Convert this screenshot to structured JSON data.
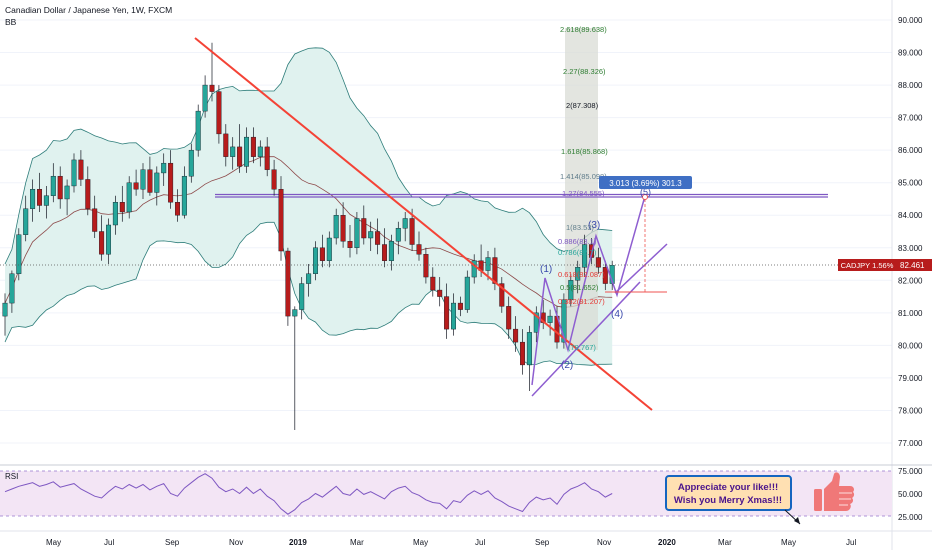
{
  "header": {
    "symbol_title": "Canadian Dollar / Japanese Yen, 1W, FXCM",
    "indicator": "BB"
  },
  "price_axis": {
    "ticks": [
      "90.000",
      "89.000",
      "88.000",
      "87.000",
      "86.000",
      "85.000",
      "84.000",
      "83.000",
      "82.000",
      "81.000",
      "80.000",
      "79.000",
      "78.000",
      "77.000"
    ],
    "current_label": "CADJPY 1.56%",
    "current_value": "82.461"
  },
  "time_axis": {
    "ticks": [
      "May",
      "Jul",
      "Sep",
      "Nov",
      "2019",
      "Mar",
      "May",
      "Jul",
      "Sep",
      "Nov",
      "2020",
      "Mar",
      "May",
      "Jul"
    ]
  },
  "rsi": {
    "label": "RSI",
    "ticks": [
      "75.000",
      "50.000",
      "25.000"
    ]
  },
  "fibonacci": {
    "levels": [
      "2.618(89.638)",
      "2.27(88.326)",
      "2(87.308)",
      "1.618(85.868)",
      "1.414(85.098)",
      "1.27(84.555)",
      "1(83.53)",
      "0.886(83.1)",
      "0.786(82.7)",
      "0.618(82.087)",
      "0.5(81.652)",
      "0.382(81.207)",
      "(79.767)"
    ]
  },
  "measure_label": "3.013 (3.69%) 301.3",
  "waves": [
    "(1)",
    "(2)",
    "(3)",
    "(4)",
    "(5)"
  ],
  "note": {
    "line1": "Appreciate your like!!!",
    "line2": "Wish you Merry Xmas!!!"
  },
  "colors": {
    "up": "#26a69a",
    "down": "#b71c1c",
    "band_fill": "#e0f2ef",
    "trendline": "#f44336",
    "wave": "#8e5ed0",
    "rsi": "#7e57c2",
    "rsi_band": "#f3e5f5",
    "note_bg": "#ffe0b2",
    "note_border": "#1565c0",
    "note_text": "#4a148c",
    "thumb": "#f07878"
  },
  "chart_data": {
    "type": "candlestick",
    "timeframe": "1W",
    "ylim": [
      76.5,
      90.5
    ],
    "resistance_level": 84.6,
    "last_price": 82.461,
    "candles": [
      {
        "o": 80.9,
        "h": 81.6,
        "l": 80.3,
        "c": 81.3
      },
      {
        "o": 81.3,
        "h": 82.3,
        "l": 81.0,
        "c": 82.2
      },
      {
        "o": 82.2,
        "h": 83.6,
        "l": 82.0,
        "c": 83.4
      },
      {
        "o": 83.4,
        "h": 84.6,
        "l": 83.2,
        "c": 84.2
      },
      {
        "o": 84.2,
        "h": 85.1,
        "l": 83.8,
        "c": 84.8
      },
      {
        "o": 84.8,
        "h": 85.3,
        "l": 84.1,
        "c": 84.3
      },
      {
        "o": 84.3,
        "h": 84.9,
        "l": 83.9,
        "c": 84.6
      },
      {
        "o": 84.6,
        "h": 85.6,
        "l": 84.4,
        "c": 85.2
      },
      {
        "o": 85.2,
        "h": 85.5,
        "l": 84.2,
        "c": 84.5
      },
      {
        "o": 84.5,
        "h": 85.1,
        "l": 84.0,
        "c": 84.9
      },
      {
        "o": 84.9,
        "h": 85.9,
        "l": 84.7,
        "c": 85.7
      },
      {
        "o": 85.7,
        "h": 86.0,
        "l": 84.9,
        "c": 85.1
      },
      {
        "o": 85.1,
        "h": 85.5,
        "l": 84.0,
        "c": 84.2
      },
      {
        "o": 84.2,
        "h": 84.6,
        "l": 83.3,
        "c": 83.5
      },
      {
        "o": 83.5,
        "h": 84.0,
        "l": 82.6,
        "c": 82.8
      },
      {
        "o": 82.8,
        "h": 83.9,
        "l": 82.5,
        "c": 83.7
      },
      {
        "o": 83.7,
        "h": 84.6,
        "l": 83.4,
        "c": 84.4
      },
      {
        "o": 84.4,
        "h": 84.9,
        "l": 83.8,
        "c": 84.1
      },
      {
        "o": 84.1,
        "h": 85.2,
        "l": 83.9,
        "c": 85.0
      },
      {
        "o": 85.0,
        "h": 85.4,
        "l": 84.6,
        "c": 84.8
      },
      {
        "o": 84.8,
        "h": 85.6,
        "l": 84.5,
        "c": 85.4
      },
      {
        "o": 85.4,
        "h": 85.8,
        "l": 84.6,
        "c": 84.7
      },
      {
        "o": 84.7,
        "h": 85.5,
        "l": 84.3,
        "c": 85.3
      },
      {
        "o": 85.3,
        "h": 85.9,
        "l": 84.9,
        "c": 85.6
      },
      {
        "o": 85.6,
        "h": 86.0,
        "l": 84.2,
        "c": 84.4
      },
      {
        "o": 84.4,
        "h": 84.8,
        "l": 83.8,
        "c": 84.0
      },
      {
        "o": 84.0,
        "h": 85.5,
        "l": 83.9,
        "c": 85.2
      },
      {
        "o": 85.2,
        "h": 86.2,
        "l": 85.0,
        "c": 86.0
      },
      {
        "o": 86.0,
        "h": 87.4,
        "l": 85.8,
        "c": 87.2
      },
      {
        "o": 87.2,
        "h": 88.3,
        "l": 87.0,
        "c": 88.0
      },
      {
        "o": 88.0,
        "h": 89.3,
        "l": 87.5,
        "c": 87.8
      },
      {
        "o": 87.8,
        "h": 88.0,
        "l": 86.2,
        "c": 86.5
      },
      {
        "o": 86.5,
        "h": 86.8,
        "l": 85.5,
        "c": 85.8
      },
      {
        "o": 85.8,
        "h": 86.4,
        "l": 85.4,
        "c": 86.1
      },
      {
        "o": 86.1,
        "h": 86.8,
        "l": 85.3,
        "c": 85.5
      },
      {
        "o": 85.5,
        "h": 86.7,
        "l": 85.3,
        "c": 86.4
      },
      {
        "o": 86.4,
        "h": 86.7,
        "l": 85.6,
        "c": 85.8
      },
      {
        "o": 85.8,
        "h": 86.3,
        "l": 85.5,
        "c": 86.1
      },
      {
        "o": 86.1,
        "h": 86.4,
        "l": 85.2,
        "c": 85.4
      },
      {
        "o": 85.4,
        "h": 85.7,
        "l": 84.6,
        "c": 84.8
      },
      {
        "o": 84.8,
        "h": 85.2,
        "l": 82.6,
        "c": 82.9
      },
      {
        "o": 82.9,
        "h": 83.0,
        "l": 80.6,
        "c": 80.9
      },
      {
        "o": 80.9,
        "h": 81.2,
        "l": 77.4,
        "c": 81.1
      },
      {
        "o": 81.1,
        "h": 82.1,
        "l": 80.8,
        "c": 81.9
      },
      {
        "o": 81.9,
        "h": 82.5,
        "l": 81.5,
        "c": 82.2
      },
      {
        "o": 82.2,
        "h": 83.2,
        "l": 82.0,
        "c": 83.0
      },
      {
        "o": 83.0,
        "h": 83.4,
        "l": 82.4,
        "c": 82.6
      },
      {
        "o": 82.6,
        "h": 83.5,
        "l": 82.4,
        "c": 83.3
      },
      {
        "o": 83.3,
        "h": 84.2,
        "l": 83.1,
        "c": 84.0
      },
      {
        "o": 84.0,
        "h": 84.4,
        "l": 83.0,
        "c": 83.2
      },
      {
        "o": 83.2,
        "h": 83.7,
        "l": 82.7,
        "c": 83.0
      },
      {
        "o": 83.0,
        "h": 84.1,
        "l": 82.8,
        "c": 83.9
      },
      {
        "o": 83.9,
        "h": 84.3,
        "l": 83.1,
        "c": 83.3
      },
      {
        "o": 83.3,
        "h": 83.8,
        "l": 82.9,
        "c": 83.5
      },
      {
        "o": 83.5,
        "h": 83.9,
        "l": 82.8,
        "c": 83.1
      },
      {
        "o": 83.1,
        "h": 83.6,
        "l": 82.4,
        "c": 82.6
      },
      {
        "o": 82.6,
        "h": 83.4,
        "l": 82.3,
        "c": 83.2
      },
      {
        "o": 83.2,
        "h": 83.8,
        "l": 82.8,
        "c": 83.6
      },
      {
        "o": 83.6,
        "h": 84.1,
        "l": 83.2,
        "c": 83.9
      },
      {
        "o": 83.9,
        "h": 84.2,
        "l": 82.9,
        "c": 83.1
      },
      {
        "o": 83.1,
        "h": 83.5,
        "l": 82.6,
        "c": 82.8
      },
      {
        "o": 82.8,
        "h": 83.0,
        "l": 81.9,
        "c": 82.1
      },
      {
        "o": 82.1,
        "h": 82.4,
        "l": 81.5,
        "c": 81.7
      },
      {
        "o": 81.7,
        "h": 82.1,
        "l": 81.2,
        "c": 81.5
      },
      {
        "o": 81.5,
        "h": 81.9,
        "l": 80.2,
        "c": 80.5
      },
      {
        "o": 80.5,
        "h": 81.6,
        "l": 80.3,
        "c": 81.3
      },
      {
        "o": 81.3,
        "h": 81.5,
        "l": 80.9,
        "c": 81.1
      },
      {
        "o": 81.1,
        "h": 82.3,
        "l": 81.0,
        "c": 82.1
      },
      {
        "o": 82.1,
        "h": 82.8,
        "l": 81.9,
        "c": 82.6
      },
      {
        "o": 82.6,
        "h": 83.1,
        "l": 82.1,
        "c": 82.3
      },
      {
        "o": 82.3,
        "h": 82.9,
        "l": 82.0,
        "c": 82.7
      },
      {
        "o": 82.7,
        "h": 83.0,
        "l": 81.7,
        "c": 81.9
      },
      {
        "o": 81.9,
        "h": 82.1,
        "l": 81.0,
        "c": 81.2
      },
      {
        "o": 81.2,
        "h": 81.5,
        "l": 80.2,
        "c": 80.5
      },
      {
        "o": 80.5,
        "h": 80.9,
        "l": 79.8,
        "c": 80.1
      },
      {
        "o": 80.1,
        "h": 80.5,
        "l": 79.1,
        "c": 79.4
      },
      {
        "o": 79.4,
        "h": 80.6,
        "l": 78.6,
        "c": 80.4
      },
      {
        "o": 80.4,
        "h": 81.2,
        "l": 80.1,
        "c": 81.0
      },
      {
        "o": 81.0,
        "h": 81.4,
        "l": 80.5,
        "c": 80.7
      },
      {
        "o": 80.7,
        "h": 81.1,
        "l": 80.3,
        "c": 80.9
      },
      {
        "o": 80.9,
        "h": 81.2,
        "l": 79.9,
        "c": 80.1
      },
      {
        "o": 80.1,
        "h": 81.6,
        "l": 79.9,
        "c": 81.4
      },
      {
        "o": 81.4,
        "h": 82.2,
        "l": 81.2,
        "c": 82.0
      },
      {
        "o": 82.0,
        "h": 82.6,
        "l": 81.6,
        "c": 82.4
      },
      {
        "o": 82.4,
        "h": 83.4,
        "l": 82.1,
        "c": 83.1
      },
      {
        "o": 83.1,
        "h": 83.3,
        "l": 82.5,
        "c": 82.7
      },
      {
        "o": 82.7,
        "h": 83.0,
        "l": 82.2,
        "c": 82.4
      },
      {
        "o": 82.4,
        "h": 82.6,
        "l": 81.7,
        "c": 81.9
      },
      {
        "o": 81.9,
        "h": 82.6,
        "l": 81.7,
        "c": 82.461
      }
    ],
    "rsi_values": [
      52,
      55,
      58,
      60,
      62,
      58,
      60,
      63,
      57,
      59,
      61,
      55,
      51,
      47,
      45,
      52,
      58,
      55,
      60,
      56,
      60,
      54,
      58,
      61,
      50,
      47,
      56,
      62,
      68,
      72,
      67,
      57,
      52,
      55,
      50,
      57,
      50,
      55,
      47,
      42,
      33,
      27,
      32,
      40,
      44,
      50,
      46,
      52,
      58,
      50,
      48,
      55,
      49,
      52,
      48,
      44,
      52,
      56,
      58,
      51,
      48,
      43,
      40,
      39,
      33,
      42,
      40,
      48,
      53,
      49,
      53,
      45,
      41,
      36,
      33,
      30,
      40,
      46,
      43,
      45,
      38,
      49,
      55,
      58,
      62,
      55,
      52,
      46,
      50
    ]
  }
}
